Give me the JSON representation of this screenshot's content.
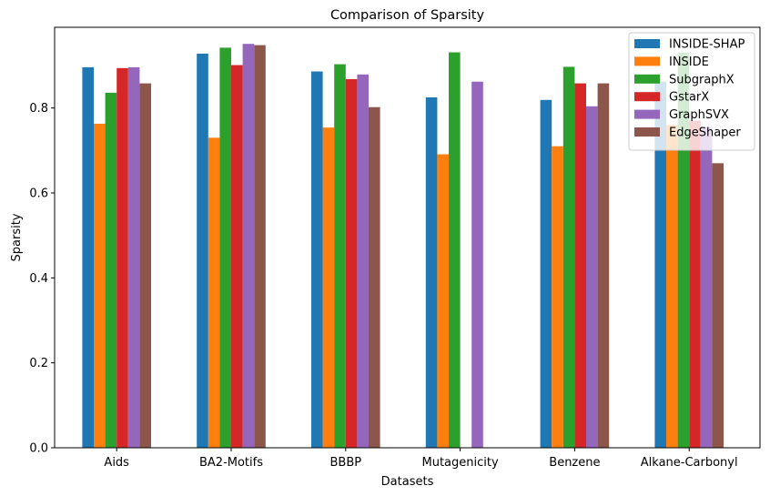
{
  "chart_data": {
    "type": "bar",
    "title": "Comparison of Sparsity",
    "xlabel": "Datasets",
    "ylabel": "Sparsity",
    "ylim": [
      0,
      0.99
    ],
    "yticks": [
      0.0,
      0.2,
      0.4,
      0.6,
      0.8
    ],
    "ytick_labels": [
      "0.0",
      "0.2",
      "0.4",
      "0.6",
      "0.8"
    ],
    "grid": false,
    "legend_position": "top-right",
    "categories": [
      "Aids",
      "BA2-Motifs",
      "BBBP",
      "Mutagenicity",
      "Benzene",
      "Alkane-Carbonyl"
    ],
    "series": [
      {
        "name": "INSIDE-SHAP",
        "color": "#1f77b4",
        "values": [
          0.896,
          0.928,
          0.886,
          0.825,
          0.819,
          0.862
        ]
      },
      {
        "name": "INSIDE",
        "color": "#ff7f0e",
        "values": [
          0.763,
          0.73,
          0.754,
          0.691,
          0.71,
          0.76
        ]
      },
      {
        "name": "SubgraphX",
        "color": "#2ca02c",
        "values": [
          0.836,
          0.942,
          0.903,
          0.931,
          0.897,
          0.93
        ]
      },
      {
        "name": "GstarX",
        "color": "#d62728",
        "values": [
          0.894,
          0.901,
          0.868,
          null,
          0.858,
          0.77
        ]
      },
      {
        "name": "GraphSVX",
        "color": "#9467bd",
        "values": [
          0.896,
          0.951,
          0.879,
          0.862,
          0.804,
          0.755
        ]
      },
      {
        "name": "EdgeShaper",
        "color": "#8c564b",
        "values": [
          0.858,
          0.948,
          0.802,
          null,
          0.858,
          0.67
        ]
      }
    ]
  }
}
